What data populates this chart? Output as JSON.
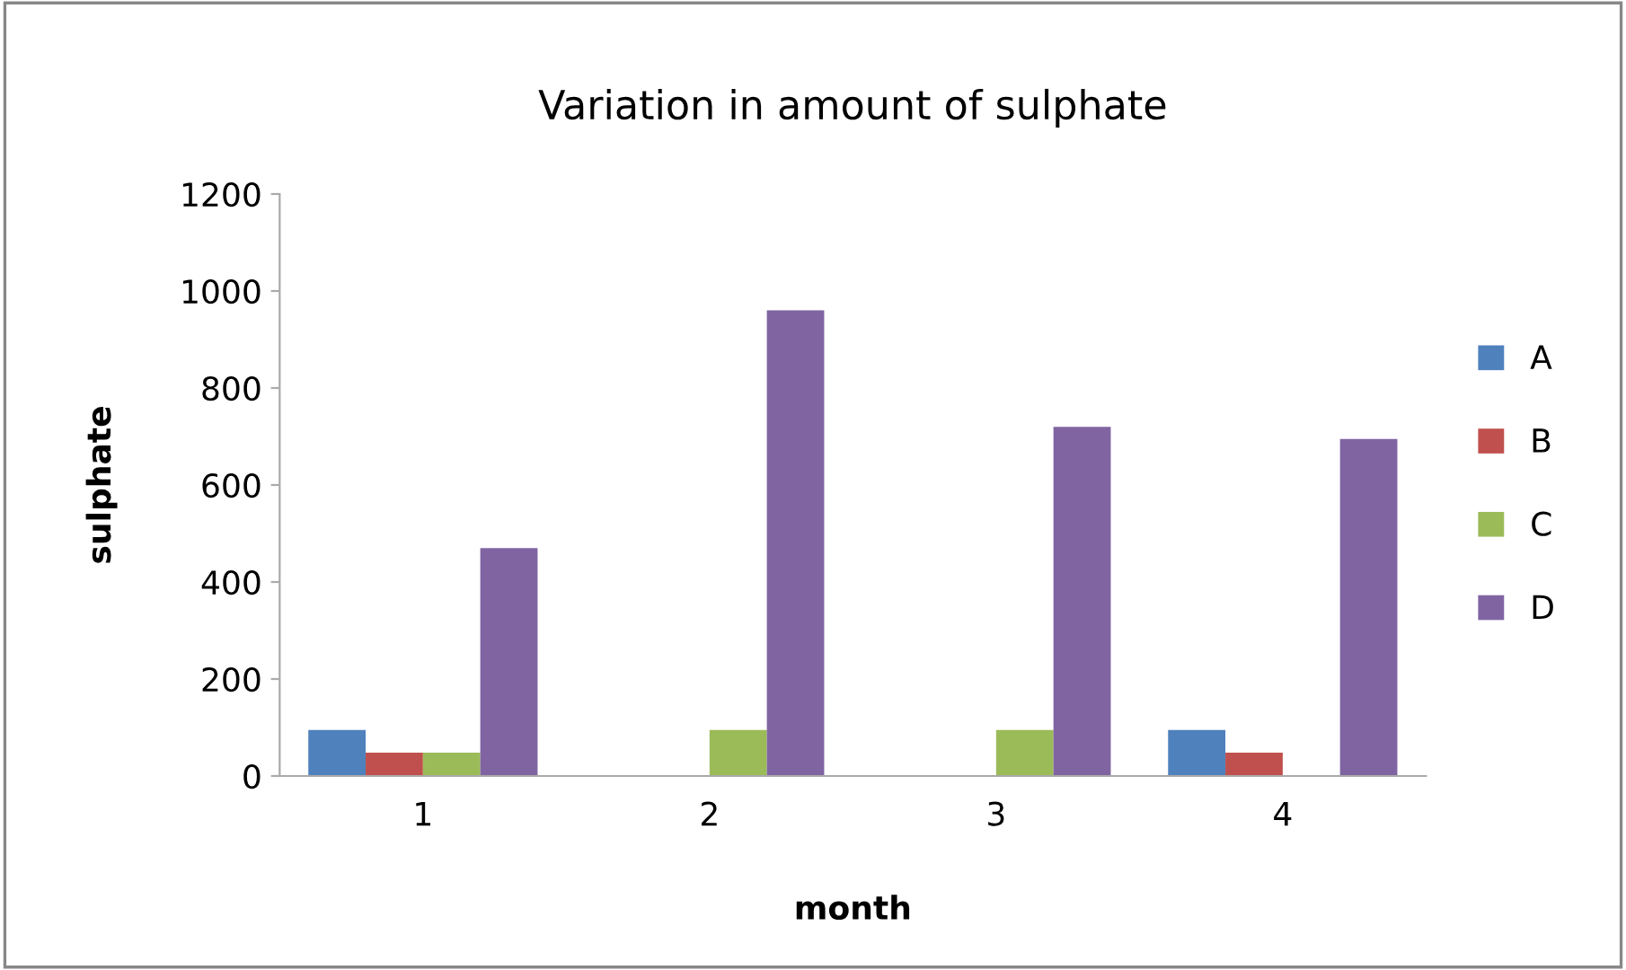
{
  "chart_data": {
    "type": "bar",
    "title": "Variation in amount of sulphate",
    "xlabel": "month",
    "ylabel": "sulphate",
    "categories": [
      "1",
      "2",
      "3",
      "4"
    ],
    "series": [
      {
        "name": "A",
        "color": "#4f81bd",
        "values": [
          95,
          0,
          0,
          95
        ]
      },
      {
        "name": "B",
        "color": "#c0504d",
        "values": [
          48,
          0,
          0,
          48
        ]
      },
      {
        "name": "C",
        "color": "#9bbb59",
        "values": [
          48,
          95,
          95,
          0
        ]
      },
      {
        "name": "D",
        "color": "#8064a2",
        "values": [
          470,
          960,
          720,
          695
        ]
      }
    ],
    "ylim": [
      0,
      1200
    ],
    "yticks": [
      0,
      200,
      400,
      600,
      800,
      1000,
      1200
    ],
    "grid": false,
    "legend": "right"
  }
}
